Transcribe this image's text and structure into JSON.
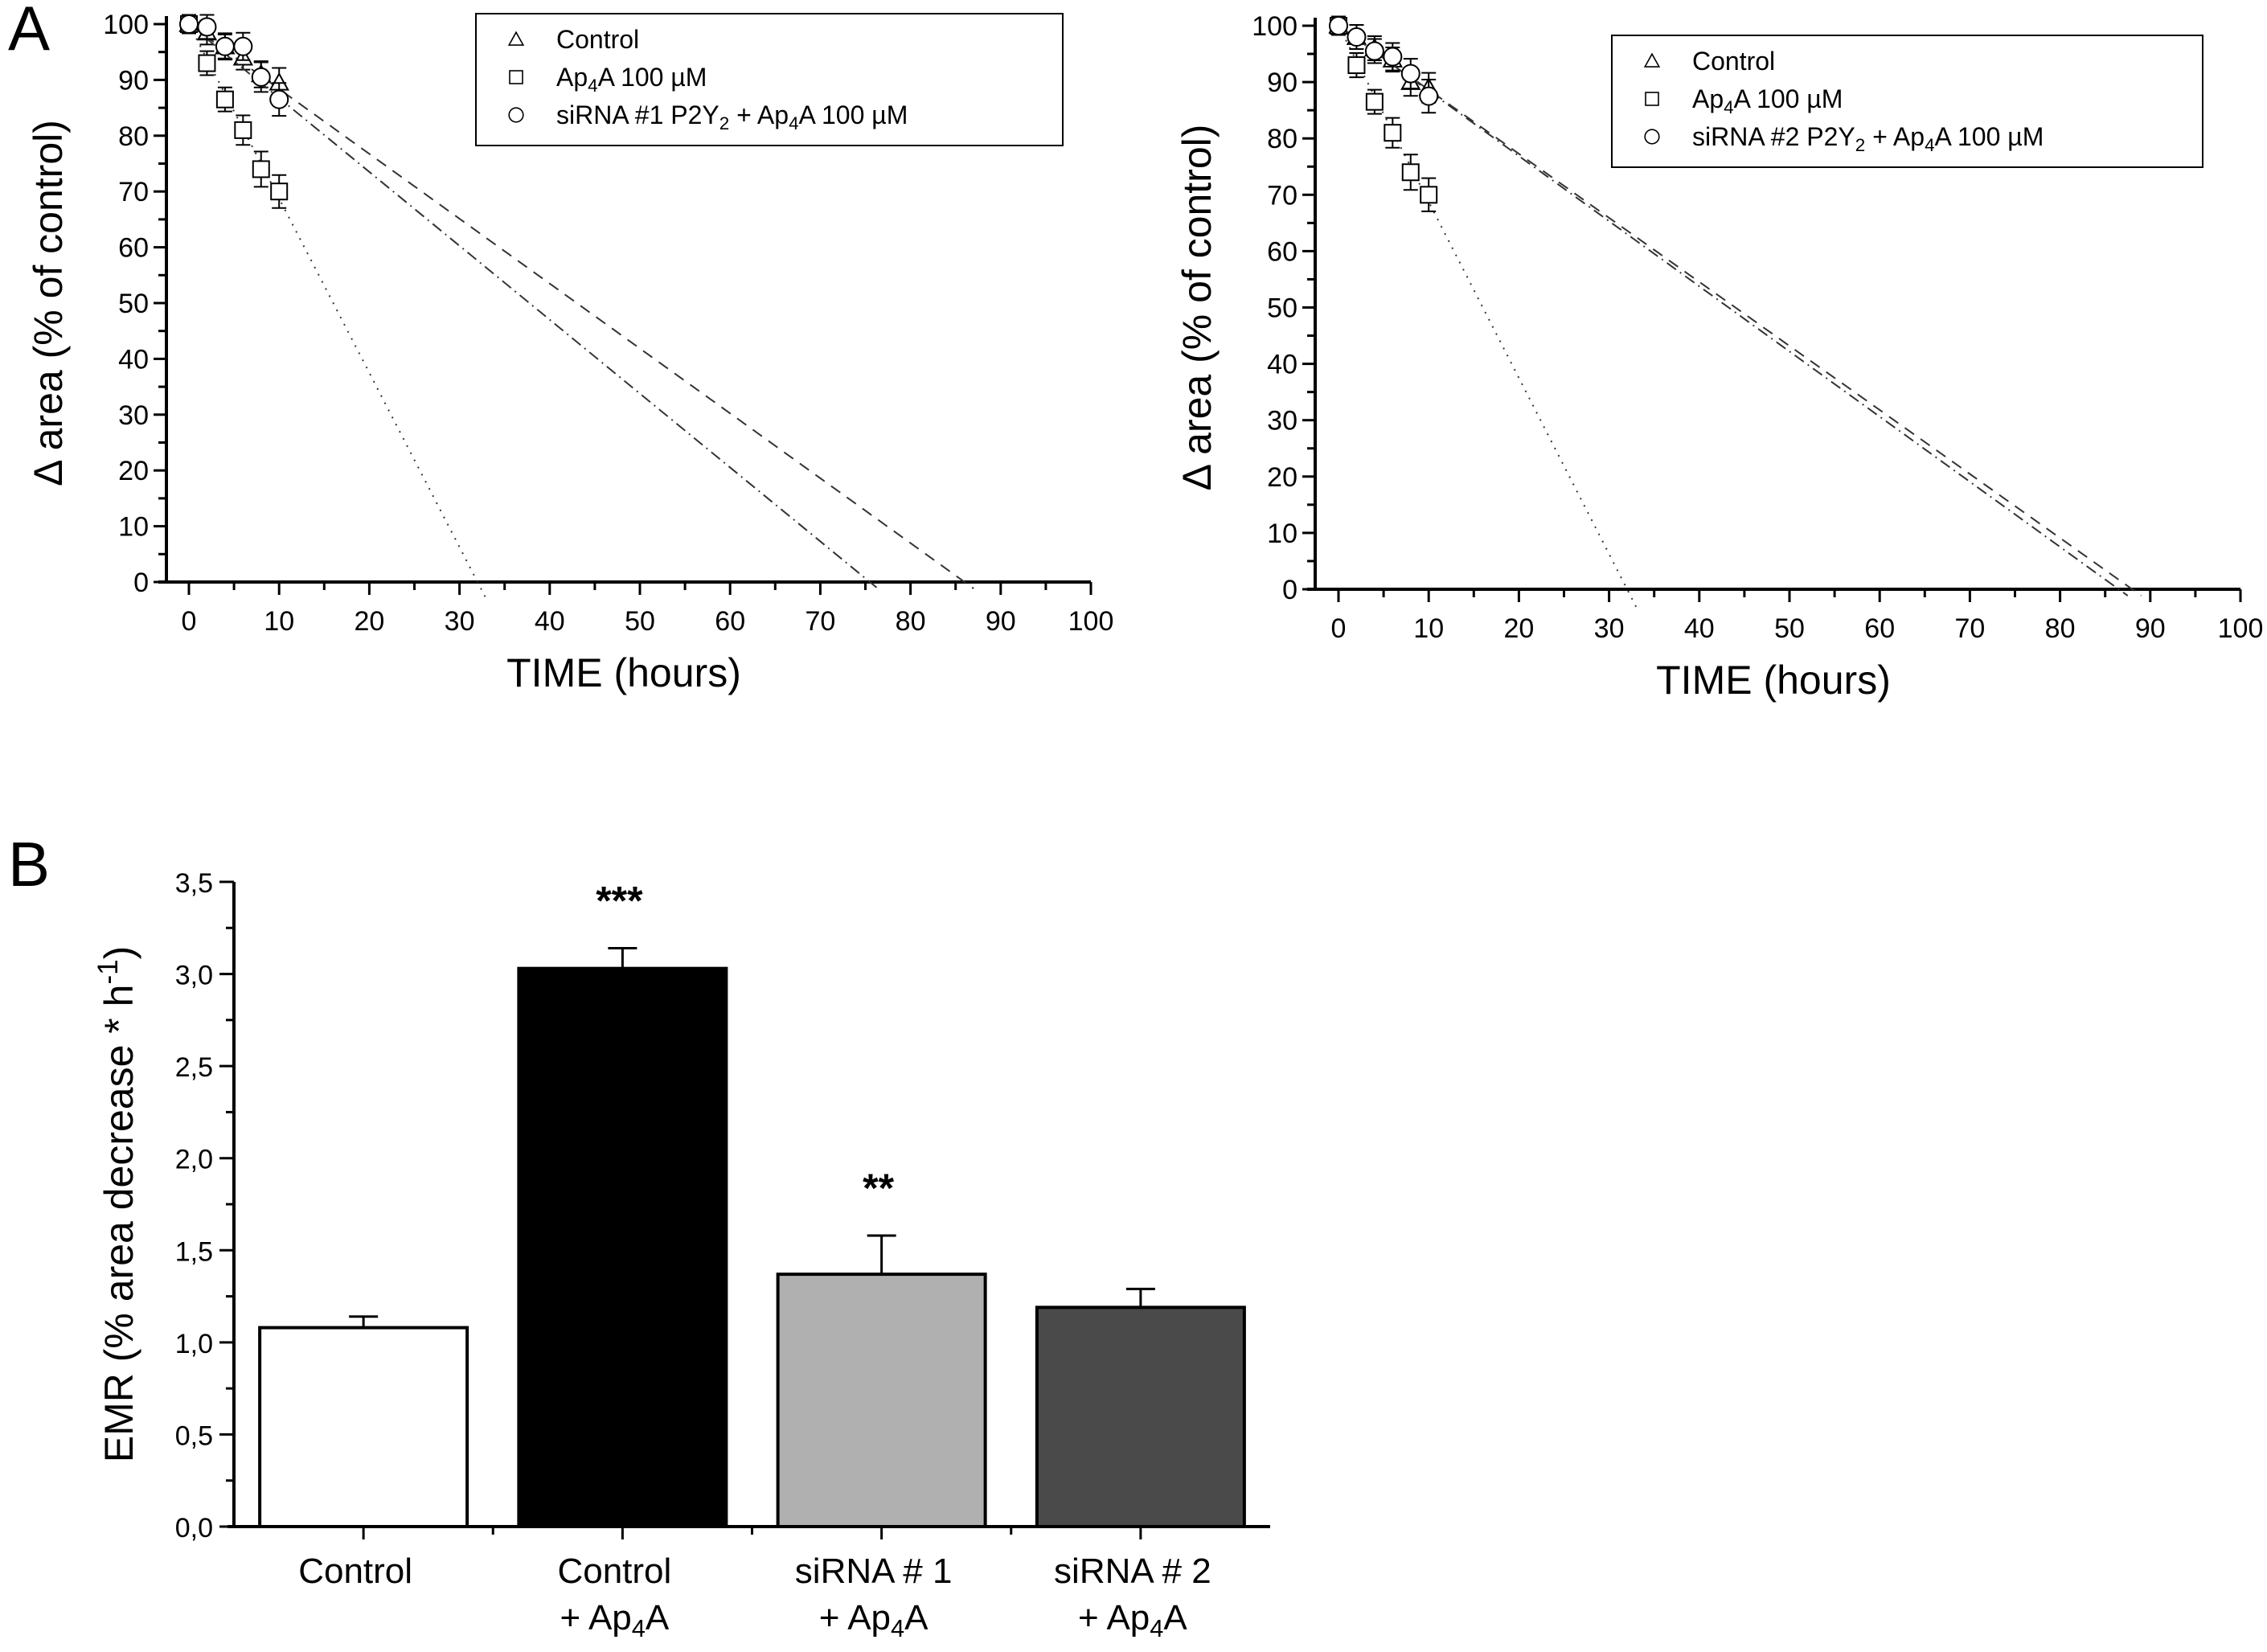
{
  "panels": {
    "a_letter": "A",
    "b_letter": "B"
  },
  "chart_data": [
    {
      "type": "scatter",
      "panel": "A-left",
      "xlabel": "TIME (hours)",
      "ylabel": "Δ area (% of control)",
      "xlim": [
        0,
        100
      ],
      "ylim": [
        0,
        100
      ],
      "xticks": [
        "0",
        "10",
        "20",
        "30",
        "40",
        "50",
        "60",
        "70",
        "80",
        "90",
        "100"
      ],
      "yticks": [
        "0",
        "10",
        "20",
        "30",
        "40",
        "50",
        "60",
        "70",
        "80",
        "90",
        "100"
      ],
      "grid": false,
      "legend_position": "top-right",
      "series": [
        {
          "name": "Control",
          "marker": "triangle",
          "fit_line": "dashed",
          "x": [
            0,
            2,
            4,
            6,
            8,
            10
          ],
          "y": [
            100,
            98.5,
            96,
            94,
            91,
            89.5
          ],
          "err": [
            0.5,
            1,
            1,
            1,
            1.2,
            1.5
          ],
          "fit": {
            "x0": 0,
            "y0": 100,
            "x_intercept": 86
          }
        },
        {
          "name": "Ap4A 100 µM",
          "marker": "square",
          "fit_line": "dotted",
          "x": [
            0,
            2,
            4,
            6,
            8,
            10
          ],
          "y": [
            100,
            93,
            86.5,
            81,
            74,
            70
          ],
          "err": [
            0.5,
            1,
            1,
            1.5,
            2,
            1.8
          ],
          "fit": {
            "x0": 0,
            "y0": 100,
            "x_intercept": 32
          }
        },
        {
          "name": "siRNA #1 P2Y2 + Ap4A 100 µM",
          "marker": "circle",
          "fit_line": "dash-dot",
          "x": [
            0,
            2,
            4,
            6,
            8,
            10
          ],
          "y": [
            100,
            99.5,
            96,
            96,
            90.5,
            86.5
          ],
          "err": [
            0.5,
            1,
            1.2,
            1.3,
            1.5,
            1.8
          ],
          "fit": {
            "x0": 0,
            "y0": 100,
            "x_intercept": 75.5
          }
        }
      ],
      "legend": [
        {
          "label": "Control",
          "sub": null
        },
        {
          "label_parts": [
            "Ap",
            "4",
            "A 100 µM"
          ]
        },
        {
          "label_parts": [
            "siRNA #1 P2Y",
            "2",
            " + Ap",
            "4",
            "A 100 µM"
          ]
        }
      ]
    },
    {
      "type": "scatter",
      "panel": "A-right",
      "xlabel": "TIME (hours)",
      "ylabel": "Δ area (% of control)",
      "xlim": [
        0,
        100
      ],
      "ylim": [
        0,
        100
      ],
      "xticks": [
        "0",
        "10",
        "20",
        "30",
        "40",
        "50",
        "60",
        "70",
        "80",
        "90",
        "100"
      ],
      "yticks": [
        "0",
        "10",
        "20",
        "30",
        "40",
        "50",
        "60",
        "70",
        "80",
        "90",
        "100"
      ],
      "grid": false,
      "legend_position": "top-right",
      "series": [
        {
          "name": "Control",
          "marker": "triangle",
          "fit_line": "dashed",
          "x": [
            0,
            2,
            4,
            6,
            8,
            10
          ],
          "y": [
            100,
            98,
            96,
            94,
            90,
            89
          ],
          "err": [
            0.5,
            1,
            1,
            1,
            1.3,
            1.5
          ],
          "fit": {
            "x0": 0,
            "y0": 100,
            "x_intercept": 88
          }
        },
        {
          "name": "Ap4A 100 µM",
          "marker": "square",
          "fit_line": "dotted",
          "x": [
            0,
            2,
            4,
            6,
            8,
            10
          ],
          "y": [
            100,
            93,
            86.5,
            81,
            74,
            70
          ],
          "err": [
            0.5,
            1,
            1,
            1.5,
            2,
            1.8
          ],
          "fit": {
            "x0": 0,
            "y0": 100,
            "x_intercept": 32
          }
        },
        {
          "name": "siRNA #2 P2Y2 + Ap4A 100 µM",
          "marker": "circle",
          "fit_line": "dash-dot",
          "x": [
            0,
            2,
            4,
            6,
            8,
            10
          ],
          "y": [
            100,
            98,
            95.5,
            94.5,
            91.5,
            87.5
          ],
          "err": [
            0.5,
            1,
            1,
            1.3,
            1.5,
            1.8
          ],
          "fit": {
            "x0": 0,
            "y0": 100,
            "x_intercept": 86.5
          }
        }
      ],
      "legend": [
        {
          "label": "Control",
          "sub": null
        },
        {
          "label_parts": [
            "Ap",
            "4",
            "A 100 µM"
          ]
        },
        {
          "label_parts": [
            "siRNA #2 P2Y",
            "2",
            " + Ap",
            "4",
            "A 100 µM"
          ]
        }
      ]
    },
    {
      "type": "bar",
      "panel": "B",
      "ylabel": "EMR (% area decrease * h",
      "ylabel_sup": "-1",
      "ylabel_close": ")",
      "ylim": [
        0,
        3.5
      ],
      "yticks": [
        "0,0",
        "0,5",
        "1,0",
        "1,5",
        "2,0",
        "2,5",
        "3,0",
        "3,5"
      ],
      "categories": [
        {
          "line1": "Control",
          "line2_parts": []
        },
        {
          "line1": "Control",
          "line2_parts": [
            "+ Ap",
            "4",
            "A"
          ]
        },
        {
          "line1": "siRNA # 1",
          "line2_parts": [
            "+ Ap",
            "4",
            "A"
          ]
        },
        {
          "line1": "siRNA # 2",
          "line2_parts": [
            "+ Ap",
            "4",
            "A"
          ]
        }
      ],
      "values": [
        1.08,
        3.03,
        1.37,
        1.19
      ],
      "errors": [
        0.06,
        0.11,
        0.21,
        0.1
      ],
      "significance": [
        "",
        "***",
        "**",
        ""
      ],
      "colors": [
        "#ffffff",
        "#000000",
        "#b0b0b0",
        "#4a4a4a"
      ],
      "grid": false
    }
  ]
}
